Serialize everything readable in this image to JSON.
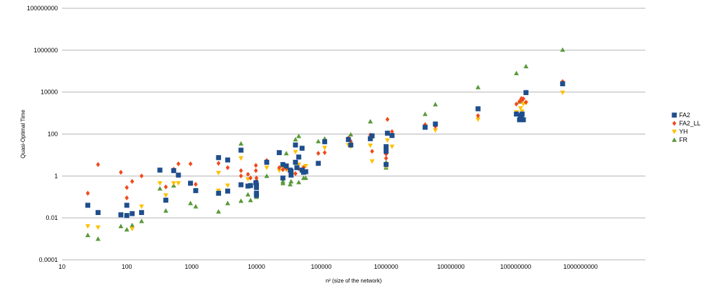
{
  "chart_data": {
    "type": "scatter",
    "xlabel": "n² (size of the network)",
    "ylabel": "Quasi-Optimal Time",
    "x_scale": "log",
    "y_scale": "log",
    "xlim": [
      10,
      10000000000
    ],
    "ylim": [
      0.0001,
      100000000
    ],
    "x_ticks": [
      "10",
      "100",
      "1000",
      "10000",
      "100000",
      "1000000",
      "10000000",
      "100000000",
      "1000000000"
    ],
    "y_ticks": [
      "0.0001",
      "0.01",
      "1",
      "100",
      "10000",
      "1000000",
      "100000000"
    ],
    "grid": "horizontal",
    "legend": "right",
    "series": [
      {
        "name": "FA2",
        "color": "#1f4e8c",
        "marker": "square",
        "points": [
          [
            25,
            0.04
          ],
          [
            36,
            0.018
          ],
          [
            81,
            0.014
          ],
          [
            100,
            0.04
          ],
          [
            100,
            0.013
          ],
          [
            121,
            0.016
          ],
          [
            169,
            0.018
          ],
          [
            324,
            1.9
          ],
          [
            400,
            0.07
          ],
          [
            529,
            1.8
          ],
          [
            625,
            1.1
          ],
          [
            961,
            0.45
          ],
          [
            1156,
            0.2
          ],
          [
            2601,
            7.5
          ],
          [
            2601,
            0.15
          ],
          [
            3600,
            5.8
          ],
          [
            3600,
            0.19
          ],
          [
            5776,
            17
          ],
          [
            5776,
            0.38
          ],
          [
            7396,
            0.33
          ],
          [
            8100,
            0.35
          ],
          [
            9801,
            0.48
          ],
          [
            10000,
            0.28
          ],
          [
            10000,
            0.15
          ],
          [
            10000,
            0.12
          ],
          [
            10000,
            0.38
          ],
          [
            14400,
            4.5
          ],
          [
            22500,
            13
          ],
          [
            25600,
            0.8
          ],
          [
            25600,
            3.5
          ],
          [
            28900,
            3
          ],
          [
            33124,
            1.9
          ],
          [
            34225,
            1.7
          ],
          [
            34225,
            1.1
          ],
          [
            40000,
            30
          ],
          [
            40000,
            4.5
          ],
          [
            42025,
            2.5
          ],
          [
            44944,
            8
          ],
          [
            50625,
            21
          ],
          [
            50625,
            1.9
          ],
          [
            53361,
            1.5
          ],
          [
            57600,
            1.6
          ],
          [
            90000,
            4
          ],
          [
            112896,
            43
          ],
          [
            262144,
            55
          ],
          [
            285156,
            30
          ],
          [
            571536,
            60
          ],
          [
            608400,
            82
          ],
          [
            1000000,
            3.5
          ],
          [
            1000000,
            15
          ],
          [
            1000000,
            25
          ],
          [
            1048576,
            110
          ],
          [
            1234321,
            85
          ],
          [
            4000000,
            210
          ],
          [
            5760000,
            300
          ],
          [
            26214400,
            1600
          ],
          [
            102400000,
            900
          ],
          [
            114490000,
            480
          ],
          [
            118810000,
            760
          ],
          [
            122500000,
            620
          ],
          [
            125440000,
            900
          ],
          [
            131070000,
            480
          ],
          [
            144000000,
            9500
          ],
          [
            529000000,
            25000
          ]
        ]
      },
      {
        "name": "FA2_LL",
        "color": "#f04a1c",
        "marker": "diamond",
        "points": [
          [
            25,
            0.15
          ],
          [
            36,
            3.5
          ],
          [
            81,
            1.5
          ],
          [
            100,
            0.28
          ],
          [
            100,
            0.09
          ],
          [
            121,
            0.55
          ],
          [
            169,
            1
          ],
          [
            400,
            0.3
          ],
          [
            529,
            2.1
          ],
          [
            625,
            3.8
          ],
          [
            961,
            3.8
          ],
          [
            1156,
            0.4
          ],
          [
            2601,
            4
          ],
          [
            3600,
            2.5
          ],
          [
            5776,
            1.8
          ],
          [
            5776,
            1
          ],
          [
            7396,
            1.2
          ],
          [
            8100,
            0.8
          ],
          [
            9801,
            3.2
          ],
          [
            9801,
            1.8
          ],
          [
            10000,
            0.8
          ],
          [
            10000,
            0.6
          ],
          [
            14400,
            5.5
          ],
          [
            22500,
            2.5
          ],
          [
            25600,
            2
          ],
          [
            28900,
            2.3
          ],
          [
            33124,
            1.6
          ],
          [
            40000,
            1.3
          ],
          [
            44944,
            2.2
          ],
          [
            50625,
            1.7
          ],
          [
            53361,
            2.5
          ],
          [
            90000,
            12
          ],
          [
            112896,
            13
          ],
          [
            262144,
            65
          ],
          [
            285156,
            45
          ],
          [
            571536,
            90
          ],
          [
            608400,
            15
          ],
          [
            1000000,
            7
          ],
          [
            1000000,
            11
          ],
          [
            1048576,
            500
          ],
          [
            1234321,
            130
          ],
          [
            4000000,
            280
          ],
          [
            5760000,
            230
          ],
          [
            26214400,
            750
          ],
          [
            102400000,
            2700
          ],
          [
            114490000,
            3600
          ],
          [
            118810000,
            4000
          ],
          [
            122500000,
            5000
          ],
          [
            125440000,
            4200
          ],
          [
            131070000,
            4800
          ],
          [
            144000000,
            3300
          ],
          [
            529000000,
            32000
          ]
        ]
      },
      {
        "name": "YH",
        "color": "#ffc000",
        "marker": "triangle-down",
        "points": [
          [
            25,
            0.004
          ],
          [
            36,
            0.0035
          ],
          [
            121,
            0.003
          ],
          [
            169,
            0.035
          ],
          [
            324,
            0.45
          ],
          [
            400,
            0.12
          ],
          [
            529,
            0.45
          ],
          [
            625,
            0.45
          ],
          [
            2601,
            0.2
          ],
          [
            2601,
            1.4
          ],
          [
            3600,
            0.35
          ],
          [
            5776,
            7
          ],
          [
            7396,
            0.7
          ],
          [
            9801,
            0.4
          ],
          [
            14400,
            2.5
          ],
          [
            22500,
            1.8
          ],
          [
            25600,
            2.5
          ],
          [
            28900,
            2
          ],
          [
            33124,
            1.5
          ],
          [
            40000,
            14
          ],
          [
            44944,
            3.5
          ],
          [
            53361,
            2.5
          ],
          [
            57600,
            3
          ],
          [
            112896,
            22
          ],
          [
            262144,
            30
          ],
          [
            285156,
            25
          ],
          [
            571536,
            28
          ],
          [
            608400,
            5
          ],
          [
            1000000,
            2.8
          ],
          [
            1000000,
            3.5
          ],
          [
            1048576,
            50
          ],
          [
            1234321,
            25
          ],
          [
            5760000,
            150
          ],
          [
            26214400,
            500
          ],
          [
            102400000,
            1100
          ],
          [
            118810000,
            1700
          ],
          [
            125440000,
            1200
          ],
          [
            131070000,
            2700
          ],
          [
            144000000,
            3000
          ],
          [
            529000000,
            9500
          ]
        ]
      },
      {
        "name": "FR",
        "color": "#5a9a3a",
        "marker": "triangle-up",
        "points": [
          [
            25,
            0.0015
          ],
          [
            36,
            0.001
          ],
          [
            81,
            0.004
          ],
          [
            100,
            0.0028
          ],
          [
            121,
            0.0045
          ],
          [
            169,
            0.007
          ],
          [
            324,
            0.25
          ],
          [
            400,
            0.022
          ],
          [
            529,
            0.35
          ],
          [
            961,
            0.05
          ],
          [
            1156,
            0.035
          ],
          [
            2601,
            0.02
          ],
          [
            3600,
            0.05
          ],
          [
            5776,
            35
          ],
          [
            5776,
            0.065
          ],
          [
            7396,
            0.13
          ],
          [
            8100,
            0.07
          ],
          [
            10000,
            0.1
          ],
          [
            14400,
            1
          ],
          [
            25600,
            0.45
          ],
          [
            25600,
            0.55
          ],
          [
            28900,
            12
          ],
          [
            33124,
            0.4
          ],
          [
            34225,
            0.55
          ],
          [
            40000,
            55
          ],
          [
            44944,
            80
          ],
          [
            44944,
            0.5
          ],
          [
            53361,
            0.8
          ],
          [
            57600,
            0.8
          ],
          [
            90000,
            45
          ],
          [
            112896,
            60
          ],
          [
            262144,
            65
          ],
          [
            285156,
            95
          ],
          [
            571536,
            400
          ],
          [
            1000000,
            4.5
          ],
          [
            1000000,
            2.5
          ],
          [
            4000000,
            900
          ],
          [
            5760000,
            2600
          ],
          [
            26214400,
            17000
          ],
          [
            102400000,
            80000
          ],
          [
            114490000,
            3500
          ],
          [
            122500000,
            4500
          ],
          [
            144000000,
            170000
          ],
          [
            529000000,
            1050000
          ]
        ]
      }
    ]
  }
}
